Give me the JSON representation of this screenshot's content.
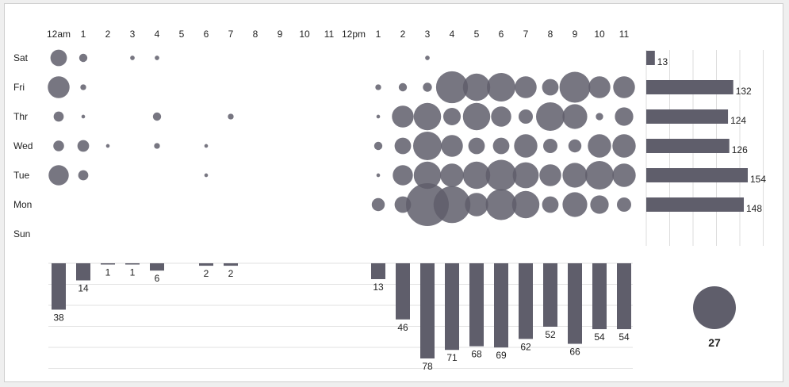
{
  "chart_data": {
    "type": "punchcard",
    "color": "#5f5e6b",
    "hours": [
      "12am",
      "1",
      "2",
      "3",
      "4",
      "5",
      "6",
      "7",
      "8",
      "9",
      "10",
      "11",
      "12pm",
      "1",
      "2",
      "3",
      "4",
      "5",
      "6",
      "7",
      "8",
      "9",
      "10",
      "11"
    ],
    "days": [
      "Sat",
      "Fri",
      "Thr",
      "Wed",
      "Tue",
      "Mon",
      "Sun"
    ],
    "counts": [
      [
        4,
        1,
        0,
        0.3,
        0.3,
        0,
        0,
        0,
        0,
        0,
        0,
        0,
        0,
        0,
        0,
        0.3,
        0,
        0,
        0,
        0,
        0,
        0,
        0,
        0
      ],
      [
        7,
        0.5,
        0,
        0,
        0,
        0,
        0,
        0,
        0,
        0,
        0,
        0,
        0,
        0.5,
        1,
        1.2,
        15,
        11,
        12,
        7,
        4,
        14,
        7,
        7
      ],
      [
        1.5,
        0.2,
        0,
        0,
        1,
        0,
        0,
        0.5,
        0,
        0,
        0,
        0,
        0,
        0.2,
        7,
        11,
        4.5,
        11,
        6,
        3,
        12,
        9,
        0.8,
        5
      ],
      [
        1.7,
        2,
        0.2,
        0,
        0.5,
        0,
        0.2,
        0,
        0,
        0,
        0,
        0,
        0,
        1,
        4,
        12,
        7,
        4,
        4,
        8,
        3,
        2.5,
        8,
        8
      ],
      [
        6,
        1.5,
        0,
        0,
        0,
        0,
        0.2,
        0,
        0,
        0,
        0,
        0,
        0,
        0.2,
        6,
        11,
        8,
        11,
        14,
        10,
        7,
        9,
        12,
        8
      ],
      [
        0,
        0,
        0,
        0,
        0,
        0,
        0,
        0,
        0,
        0,
        0,
        0,
        0,
        2.5,
        4,
        27,
        20,
        8,
        14,
        11,
        4,
        9,
        5,
        3
      ],
      [
        0,
        0,
        0,
        0,
        0,
        0,
        0,
        0,
        0,
        0,
        0,
        0,
        0,
        0,
        0,
        0,
        0,
        0,
        0,
        0,
        0,
        0,
        0,
        0
      ]
    ],
    "hour_totals": [
      38,
      14,
      1,
      1,
      6,
      0,
      2,
      2,
      0,
      0,
      0,
      0,
      0,
      13,
      46,
      78,
      71,
      68,
      69,
      62,
      52,
      66,
      54,
      54
    ],
    "day_totals": [
      13,
      132,
      124,
      126,
      154,
      148,
      0
    ],
    "legend_value": 27
  }
}
